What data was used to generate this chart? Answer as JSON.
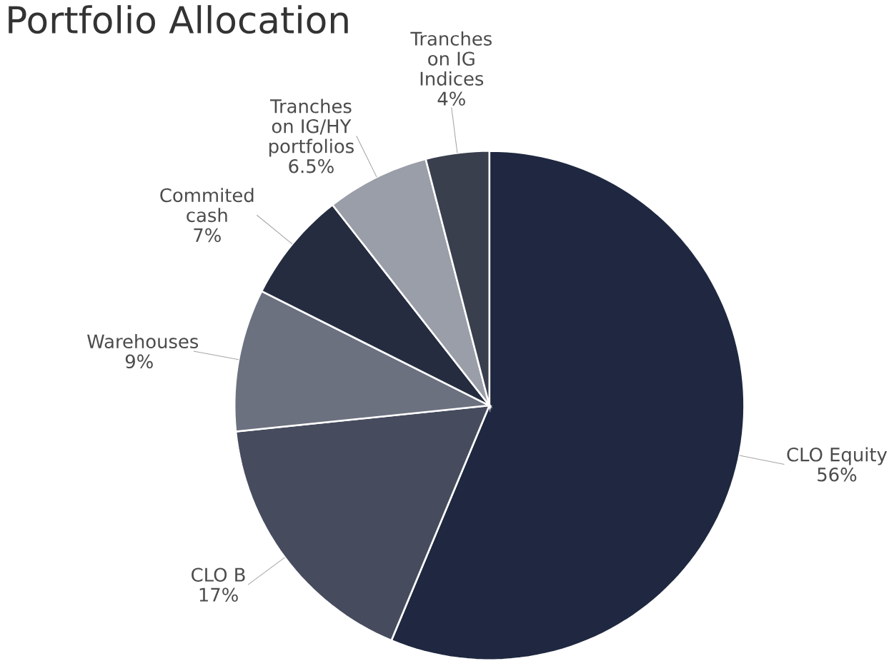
{
  "chart_data": {
    "type": "pie",
    "title": "Portfolio Allocation",
    "categories": [
      "CLO Equity",
      "CLO B",
      "Warehouses",
      "Commited cash",
      "Tranches on IG/HY portfolios",
      "Tranches on IG Indices"
    ],
    "values": [
      56,
      17,
      9,
      7,
      6.5,
      4
    ],
    "value_labels": [
      "56%",
      "17%",
      "9%",
      "7%",
      "6.5%",
      "4%"
    ],
    "colors": [
      "#1f2840",
      "#464c5e",
      "#6c7180",
      "#252c3f",
      "#9a9ea8",
      "#3a3f4e"
    ]
  }
}
